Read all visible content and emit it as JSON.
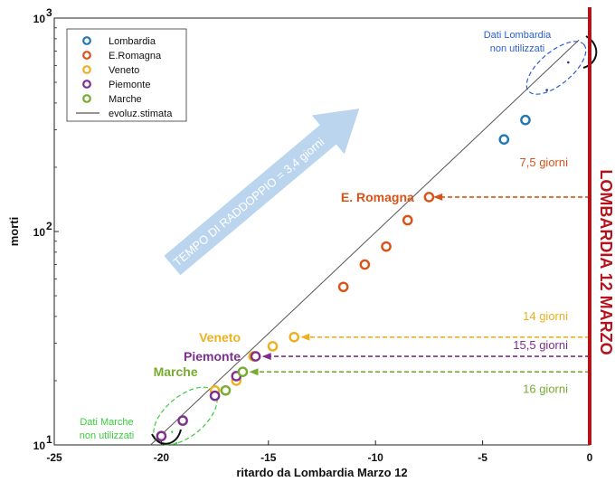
{
  "chart_data": {
    "type": "scatter",
    "xlabel": "ritardo da Lombardia Marzo 12",
    "ylabel": "morti",
    "xlim": [
      -25,
      0
    ],
    "ylim": [
      10,
      1000
    ],
    "yscale": "log",
    "x_ticks": [
      -25,
      -20,
      -15,
      -10,
      -5,
      0
    ],
    "x_tick_labels": [
      "-25",
      "-20",
      "-15",
      "-10",
      "-5",
      "0"
    ],
    "y_ticks": [
      10,
      100,
      1000
    ],
    "y_tick_labels": [
      "10",
      "10",
      "10"
    ],
    "y_tick_exponents": [
      "1",
      "2",
      "3"
    ],
    "legend_position": "top-left",
    "legend": [
      {
        "label": "Lombardia",
        "color": "#1f77b4",
        "kind": "marker"
      },
      {
        "label": "E.Romagna",
        "color": "#d95319",
        "kind": "marker"
      },
      {
        "label": "Veneto",
        "color": "#edb120",
        "kind": "marker"
      },
      {
        "label": "Piemonte",
        "color": "#7e2f8e",
        "kind": "marker"
      },
      {
        "label": "Marche",
        "color": "#77ac30",
        "kind": "marker"
      },
      {
        "label": "evoluz.stimata",
        "color": "#555555",
        "kind": "line"
      }
    ],
    "series": [
      {
        "name": "Lombardia",
        "color": "#1f77b4",
        "points": [
          [
            -4,
            270
          ],
          [
            -3,
            333
          ]
        ]
      },
      {
        "name": "E.Romagna",
        "color": "#d95319",
        "points": [
          [
            -11.5,
            55
          ],
          [
            -10.5,
            70
          ],
          [
            -9.5,
            85
          ],
          [
            -8.5,
            113
          ],
          [
            -7.5,
            145
          ]
        ]
      },
      {
        "name": "Veneto",
        "color": "#edb120",
        "points": [
          [
            -17.5,
            18
          ],
          [
            -16.5,
            20
          ],
          [
            -15.7,
            26
          ],
          [
            -14.8,
            29
          ],
          [
            -13.8,
            32
          ]
        ]
      },
      {
        "name": "Piemonte",
        "color": "#7e2f8e",
        "points": [
          [
            -20,
            11
          ],
          [
            -19,
            13
          ],
          [
            -17.5,
            17
          ],
          [
            -16.5,
            21
          ],
          [
            -15.6,
            26
          ]
        ]
      },
      {
        "name": "Marche",
        "color": "#77ac30",
        "points": [
          [
            -17,
            18
          ],
          [
            -16.2,
            22
          ]
        ]
      }
    ],
    "fit_line": {
      "from": [
        -20.5,
        10
      ],
      "to": [
        -0.5,
        790
      ]
    },
    "excluded_lombardia_points": [
      [
        -1,
        620
      ],
      [
        -2,
        460
      ]
    ],
    "excluded_marche_points": [
      [
        -19.5,
        11.5
      ],
      [
        -19.3,
        10.2
      ]
    ],
    "annotations": {
      "doubling_time": "TEMPO DI RADDOPPIO = 3,4 giorni",
      "lombardia_excluded": [
        "Dati Lombardia",
        "non utilizzati"
      ],
      "marche_excluded": [
        "Dati Marche",
        "non utilizzati"
      ],
      "vertical_line_label": "LOMBARDIA 12 MARZO",
      "region_labels": [
        {
          "text": "E. Romagna",
          "color": "#d95319",
          "x": -8.2,
          "y": 145
        },
        {
          "text": "Veneto",
          "color": "#edb120",
          "x": -16.3,
          "y": 32
        },
        {
          "text": "Piemonte",
          "color": "#7e2f8e",
          "x": -16.3,
          "y": 26
        },
        {
          "text": "Marche",
          "color": "#77ac30",
          "x": -18.3,
          "y": 22
        }
      ],
      "lag_arrows": [
        {
          "text": "7,5 giorni",
          "color": "#d95319",
          "from_x": 0,
          "to_x": -7.3,
          "y": 145,
          "label_y": 210
        },
        {
          "text": "14 giorni",
          "color": "#edb120",
          "from_x": 0,
          "to_x": -13.5,
          "y": 32,
          "label_y": 40
        },
        {
          "text": "15,5 giorni",
          "color": "#7e2f8e",
          "from_x": 0,
          "to_x": -15.3,
          "y": 26,
          "label_y": 29.3
        },
        {
          "text": "16 giorni",
          "color": "#77ac30",
          "from_x": 0,
          "to_x": -15.9,
          "y": 22,
          "label_y": 18.2
        }
      ]
    }
  }
}
